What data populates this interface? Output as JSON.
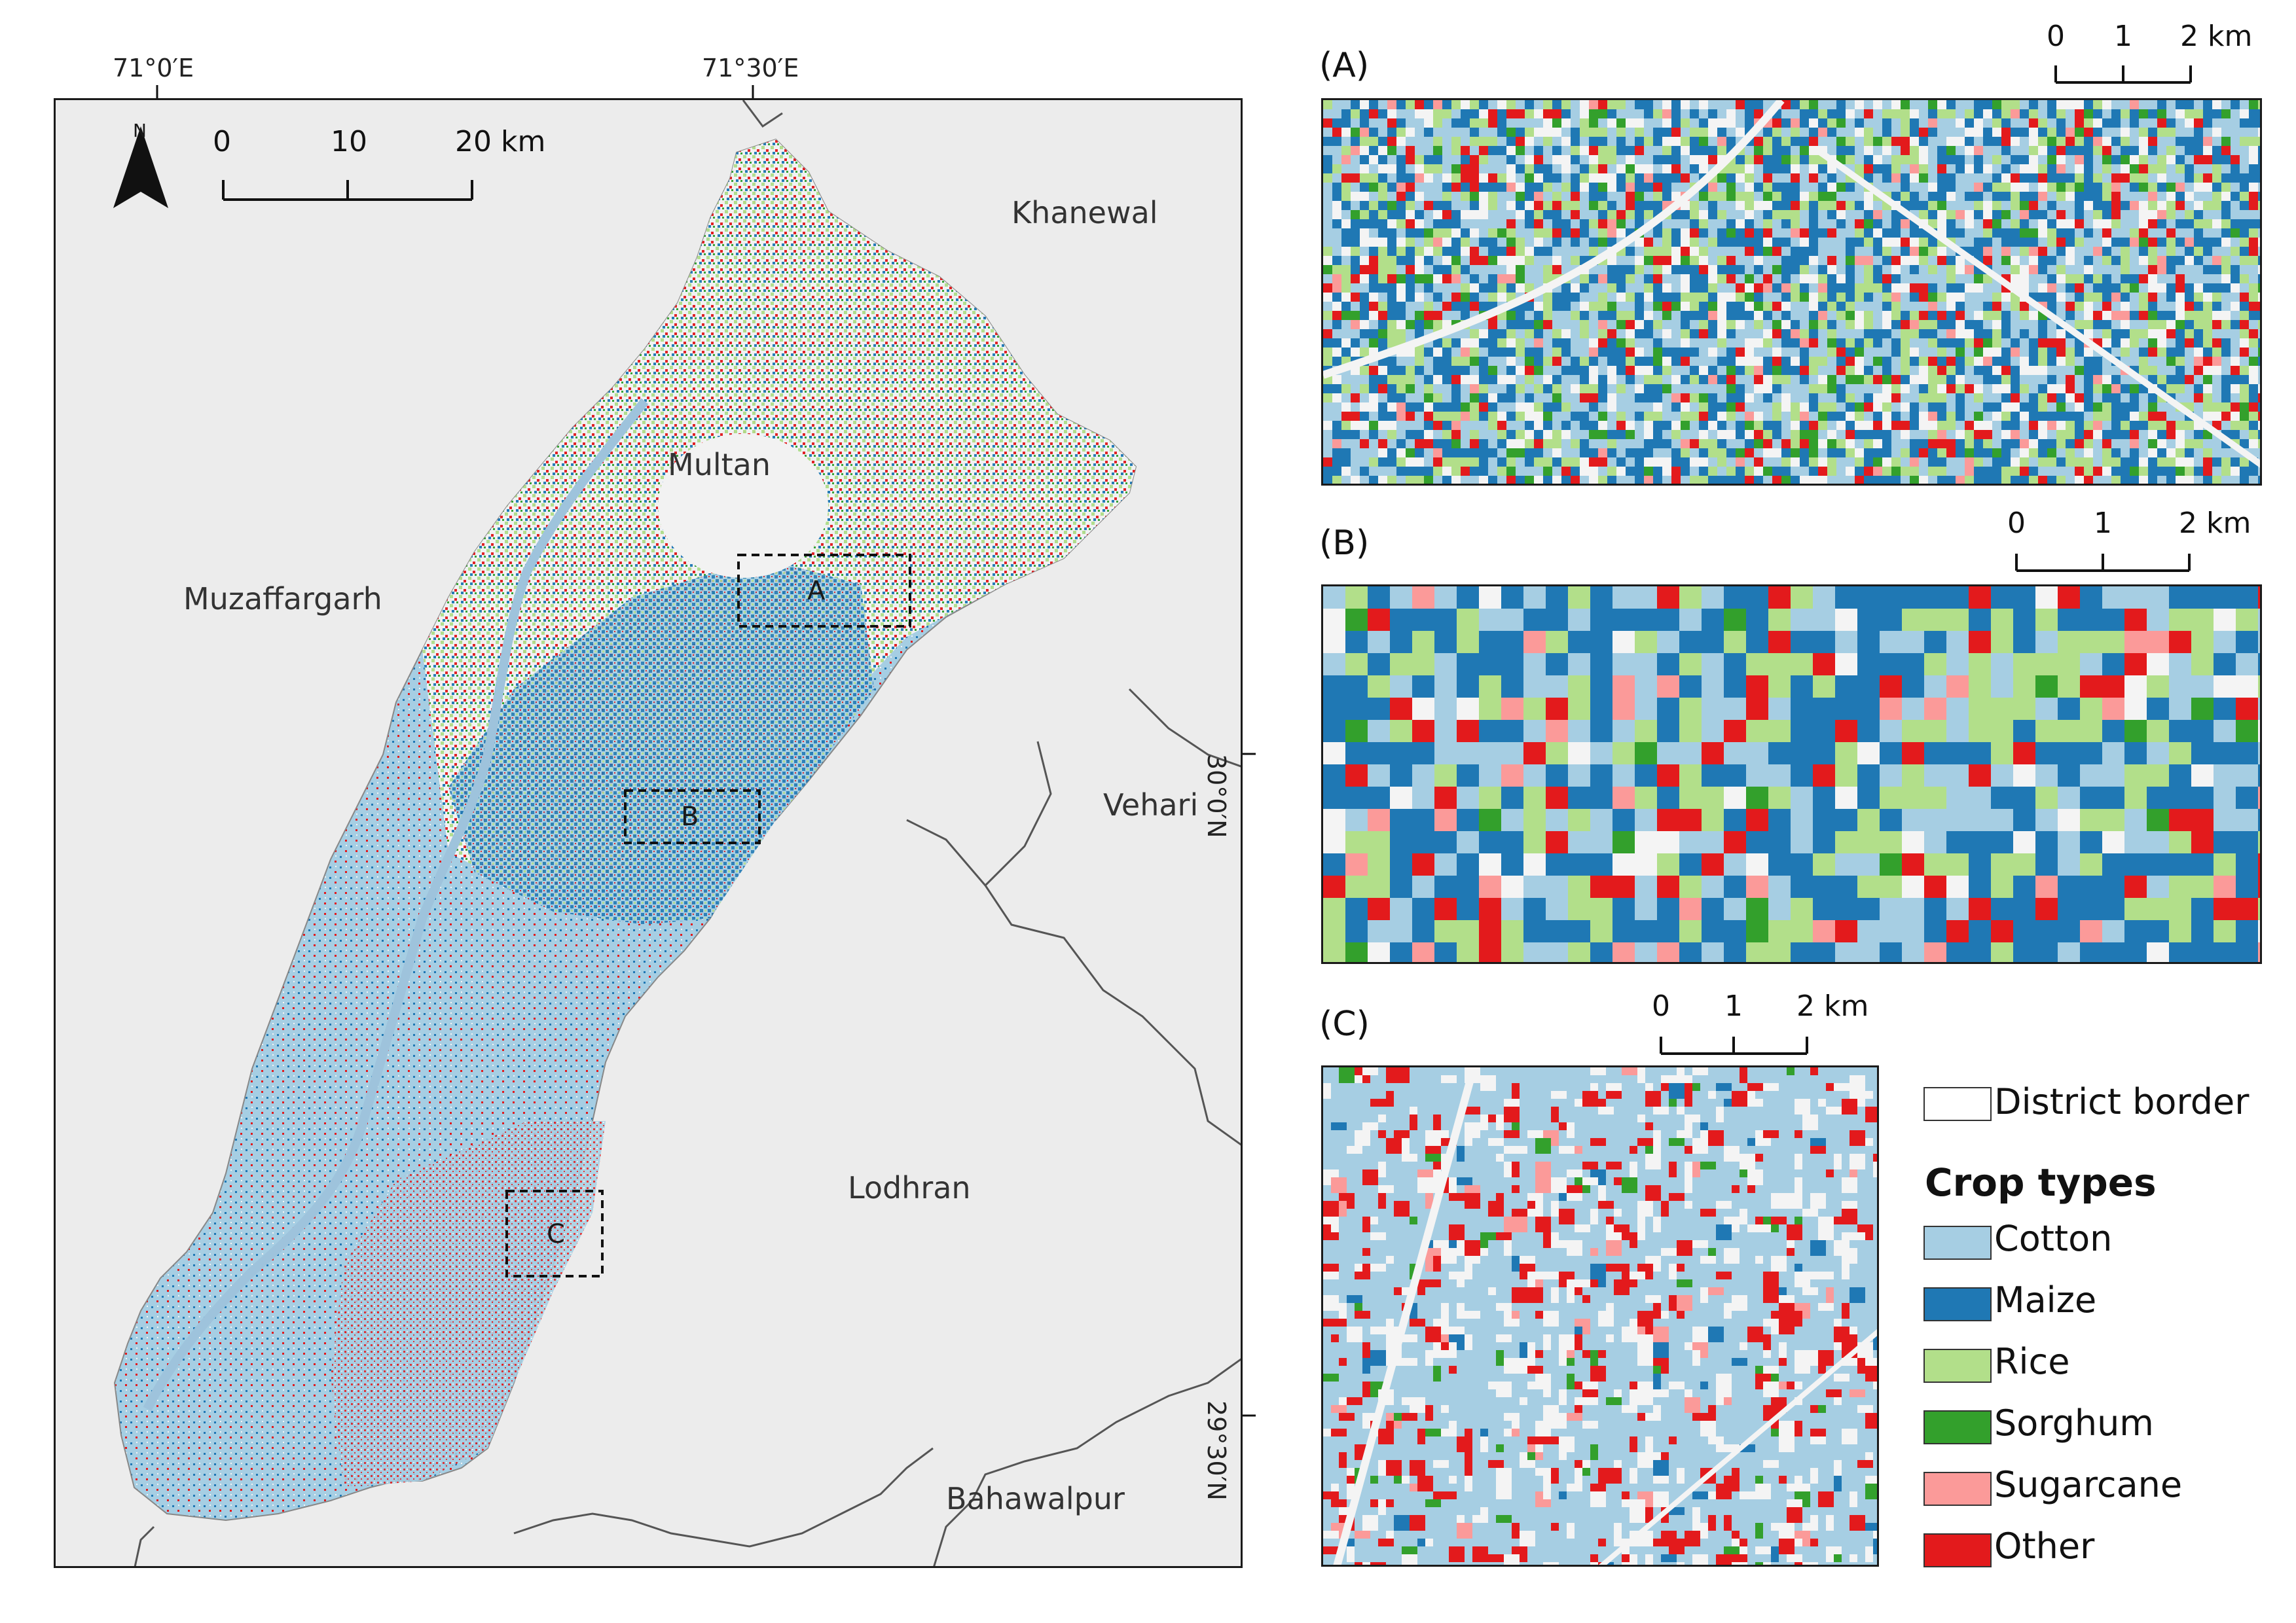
{
  "main_map": {
    "coordinates": {
      "lon_left": "71°0′E",
      "lon_right": "71°30′E",
      "lat_upper": "30°0′N",
      "lat_lower": "29°30′N"
    },
    "scalebar": {
      "t0": "0",
      "t1": "10",
      "t2": "20 km"
    },
    "north_label": "N",
    "districts": {
      "khanewal": "Khanewal",
      "multan": "Multan",
      "muzaffargarh": "Muzaffargarh",
      "vehari": "Vehari",
      "lodhran": "Lodhran",
      "bahawalpur": "Bahawalpur"
    },
    "insets": {
      "a": "A",
      "b": "B",
      "c": "C"
    }
  },
  "panels": {
    "a": {
      "title": "(A)",
      "scalebar": {
        "t0": "0",
        "t1": "1",
        "t2": "2 km"
      }
    },
    "b": {
      "title": "(B)",
      "scalebar": {
        "t0": "0",
        "t1": "1",
        "t2": "2 km"
      }
    },
    "c": {
      "title": "(C)",
      "scalebar": {
        "t0": "0",
        "t1": "1",
        "t2": "2 km"
      }
    }
  },
  "legend": {
    "border_label": "District border",
    "heading": "Crop types",
    "items": [
      {
        "label": "Cotton",
        "color": "#a6cee3"
      },
      {
        "label": "Maize",
        "color": "#1f78b4"
      },
      {
        "label": "Rice",
        "color": "#b2df8a"
      },
      {
        "label": "Sorghum",
        "color": "#33a02c"
      },
      {
        "label": "Sugarcane",
        "color": "#fb9a99"
      },
      {
        "label": "Other",
        "color": "#e31a1c"
      }
    ]
  }
}
